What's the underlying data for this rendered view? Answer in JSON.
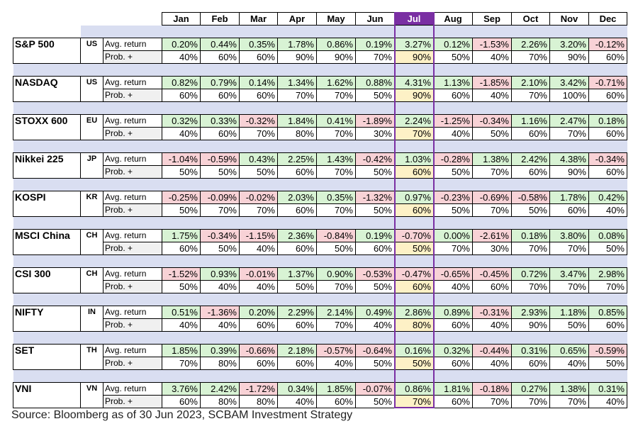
{
  "months": [
    "Jan",
    "Feb",
    "Mar",
    "Apr",
    "May",
    "Jun",
    "Jul",
    "Aug",
    "Sep",
    "Oct",
    "Nov",
    "Dec"
  ],
  "highlight_month": "Jul",
  "row_labels": {
    "avg": "Avg. return",
    "prob": "Prob. +"
  },
  "colors": {
    "positive": "#d8f3d4",
    "negative": "#f8d2d6",
    "highlight": "#fdf1c6",
    "separator": "#d9def1",
    "accent": "#7a2fa3"
  },
  "source": "Source: Bloomberg as of 30 Jun 2023, SCBAM Investment Strategy",
  "chart_data": {
    "type": "table",
    "columns": [
      "Jan",
      "Feb",
      "Mar",
      "Apr",
      "May",
      "Jun",
      "Jul",
      "Aug",
      "Sep",
      "Oct",
      "Nov",
      "Dec"
    ],
    "indices": [
      {
        "name": "S&P 500",
        "country": "US",
        "avg": [
          "0.20%",
          "0.44%",
          "0.35%",
          "1.78%",
          "0.86%",
          "0.19%",
          "3.27%",
          "0.12%",
          "-1.53%",
          "2.26%",
          "3.20%",
          "-0.12%"
        ],
        "prob": [
          "40%",
          "60%",
          "60%",
          "90%",
          "90%",
          "70%",
          "90%",
          "50%",
          "40%",
          "70%",
          "90%",
          "60%"
        ]
      },
      {
        "name": "NASDAQ",
        "country": "US",
        "avg": [
          "0.82%",
          "0.79%",
          "0.14%",
          "1.34%",
          "1.62%",
          "0.88%",
          "4.31%",
          "1.13%",
          "-1.85%",
          "2.10%",
          "3.42%",
          "-0.71%"
        ],
        "prob": [
          "60%",
          "60%",
          "60%",
          "70%",
          "70%",
          "50%",
          "90%",
          "60%",
          "40%",
          "70%",
          "100%",
          "60%"
        ]
      },
      {
        "name": "STOXX 600",
        "country": "EU",
        "avg": [
          "0.32%",
          "0.33%",
          "-0.32%",
          "1.84%",
          "0.41%",
          "-1.89%",
          "2.24%",
          "-1.25%",
          "-0.34%",
          "1.16%",
          "2.47%",
          "0.18%"
        ],
        "prob": [
          "40%",
          "60%",
          "70%",
          "80%",
          "70%",
          "30%",
          "70%",
          "40%",
          "50%",
          "60%",
          "70%",
          "60%"
        ]
      },
      {
        "name": "Nikkei 225",
        "country": "JP",
        "avg": [
          "-1.04%",
          "-0.59%",
          "0.43%",
          "2.25%",
          "1.43%",
          "-0.42%",
          "1.03%",
          "-0.28%",
          "1.38%",
          "2.42%",
          "4.38%",
          "-0.34%"
        ],
        "prob": [
          "50%",
          "50%",
          "50%",
          "60%",
          "70%",
          "50%",
          "60%",
          "50%",
          "70%",
          "60%",
          "90%",
          "60%"
        ]
      },
      {
        "name": "KOSPI",
        "country": "KR",
        "avg": [
          "-0.25%",
          "-0.09%",
          "-0.02%",
          "2.03%",
          "0.35%",
          "-1.32%",
          "0.97%",
          "-0.23%",
          "-0.69%",
          "-0.58%",
          "1.78%",
          "0.42%"
        ],
        "prob": [
          "50%",
          "70%",
          "70%",
          "60%",
          "70%",
          "50%",
          "60%",
          "50%",
          "70%",
          "50%",
          "60%",
          "40%"
        ]
      },
      {
        "name": "MSCI China",
        "country": "CH",
        "avg": [
          "1.75%",
          "-0.34%",
          "-1.15%",
          "2.36%",
          "-0.84%",
          "0.19%",
          "-0.70%",
          "0.00%",
          "-2.61%",
          "0.18%",
          "3.80%",
          "0.08%"
        ],
        "prob": [
          "60%",
          "50%",
          "40%",
          "60%",
          "50%",
          "60%",
          "50%",
          "70%",
          "30%",
          "70%",
          "70%",
          "50%"
        ]
      },
      {
        "name": "CSI 300",
        "country": "CH",
        "avg": [
          "-1.52%",
          "0.93%",
          "-0.01%",
          "1.37%",
          "0.90%",
          "-0.53%",
          "-0.47%",
          "-0.65%",
          "-0.45%",
          "0.72%",
          "3.47%",
          "2.98%"
        ],
        "prob": [
          "50%",
          "40%",
          "40%",
          "50%",
          "70%",
          "50%",
          "60%",
          "40%",
          "60%",
          "70%",
          "70%",
          "70%"
        ]
      },
      {
        "name": "NIFTY",
        "country": "IN",
        "avg": [
          "0.51%",
          "-1.36%",
          "0.20%",
          "2.29%",
          "2.14%",
          "0.49%",
          "2.86%",
          "0.89%",
          "-0.31%",
          "2.93%",
          "1.18%",
          "0.85%"
        ],
        "prob": [
          "40%",
          "40%",
          "60%",
          "60%",
          "70%",
          "40%",
          "80%",
          "60%",
          "40%",
          "90%",
          "50%",
          "60%"
        ]
      },
      {
        "name": "SET",
        "country": "TH",
        "avg": [
          "1.85%",
          "0.39%",
          "-0.66%",
          "2.18%",
          "-0.57%",
          "-0.64%",
          "0.16%",
          "0.32%",
          "-0.44%",
          "0.31%",
          "0.65%",
          "-0.59%"
        ],
        "prob": [
          "70%",
          "80%",
          "60%",
          "60%",
          "40%",
          "50%",
          "50%",
          "60%",
          "40%",
          "60%",
          "40%",
          "50%"
        ]
      },
      {
        "name": "VNI",
        "country": "VN",
        "avg": [
          "3.76%",
          "2.42%",
          "-1.72%",
          "0.34%",
          "1.85%",
          "-0.07%",
          "0.86%",
          "1.81%",
          "-0.18%",
          "0.27%",
          "1.38%",
          "0.31%"
        ],
        "prob": [
          "60%",
          "80%",
          "80%",
          "40%",
          "60%",
          "50%",
          "70%",
          "60%",
          "70%",
          "70%",
          "70%",
          "40%"
        ]
      }
    ]
  }
}
